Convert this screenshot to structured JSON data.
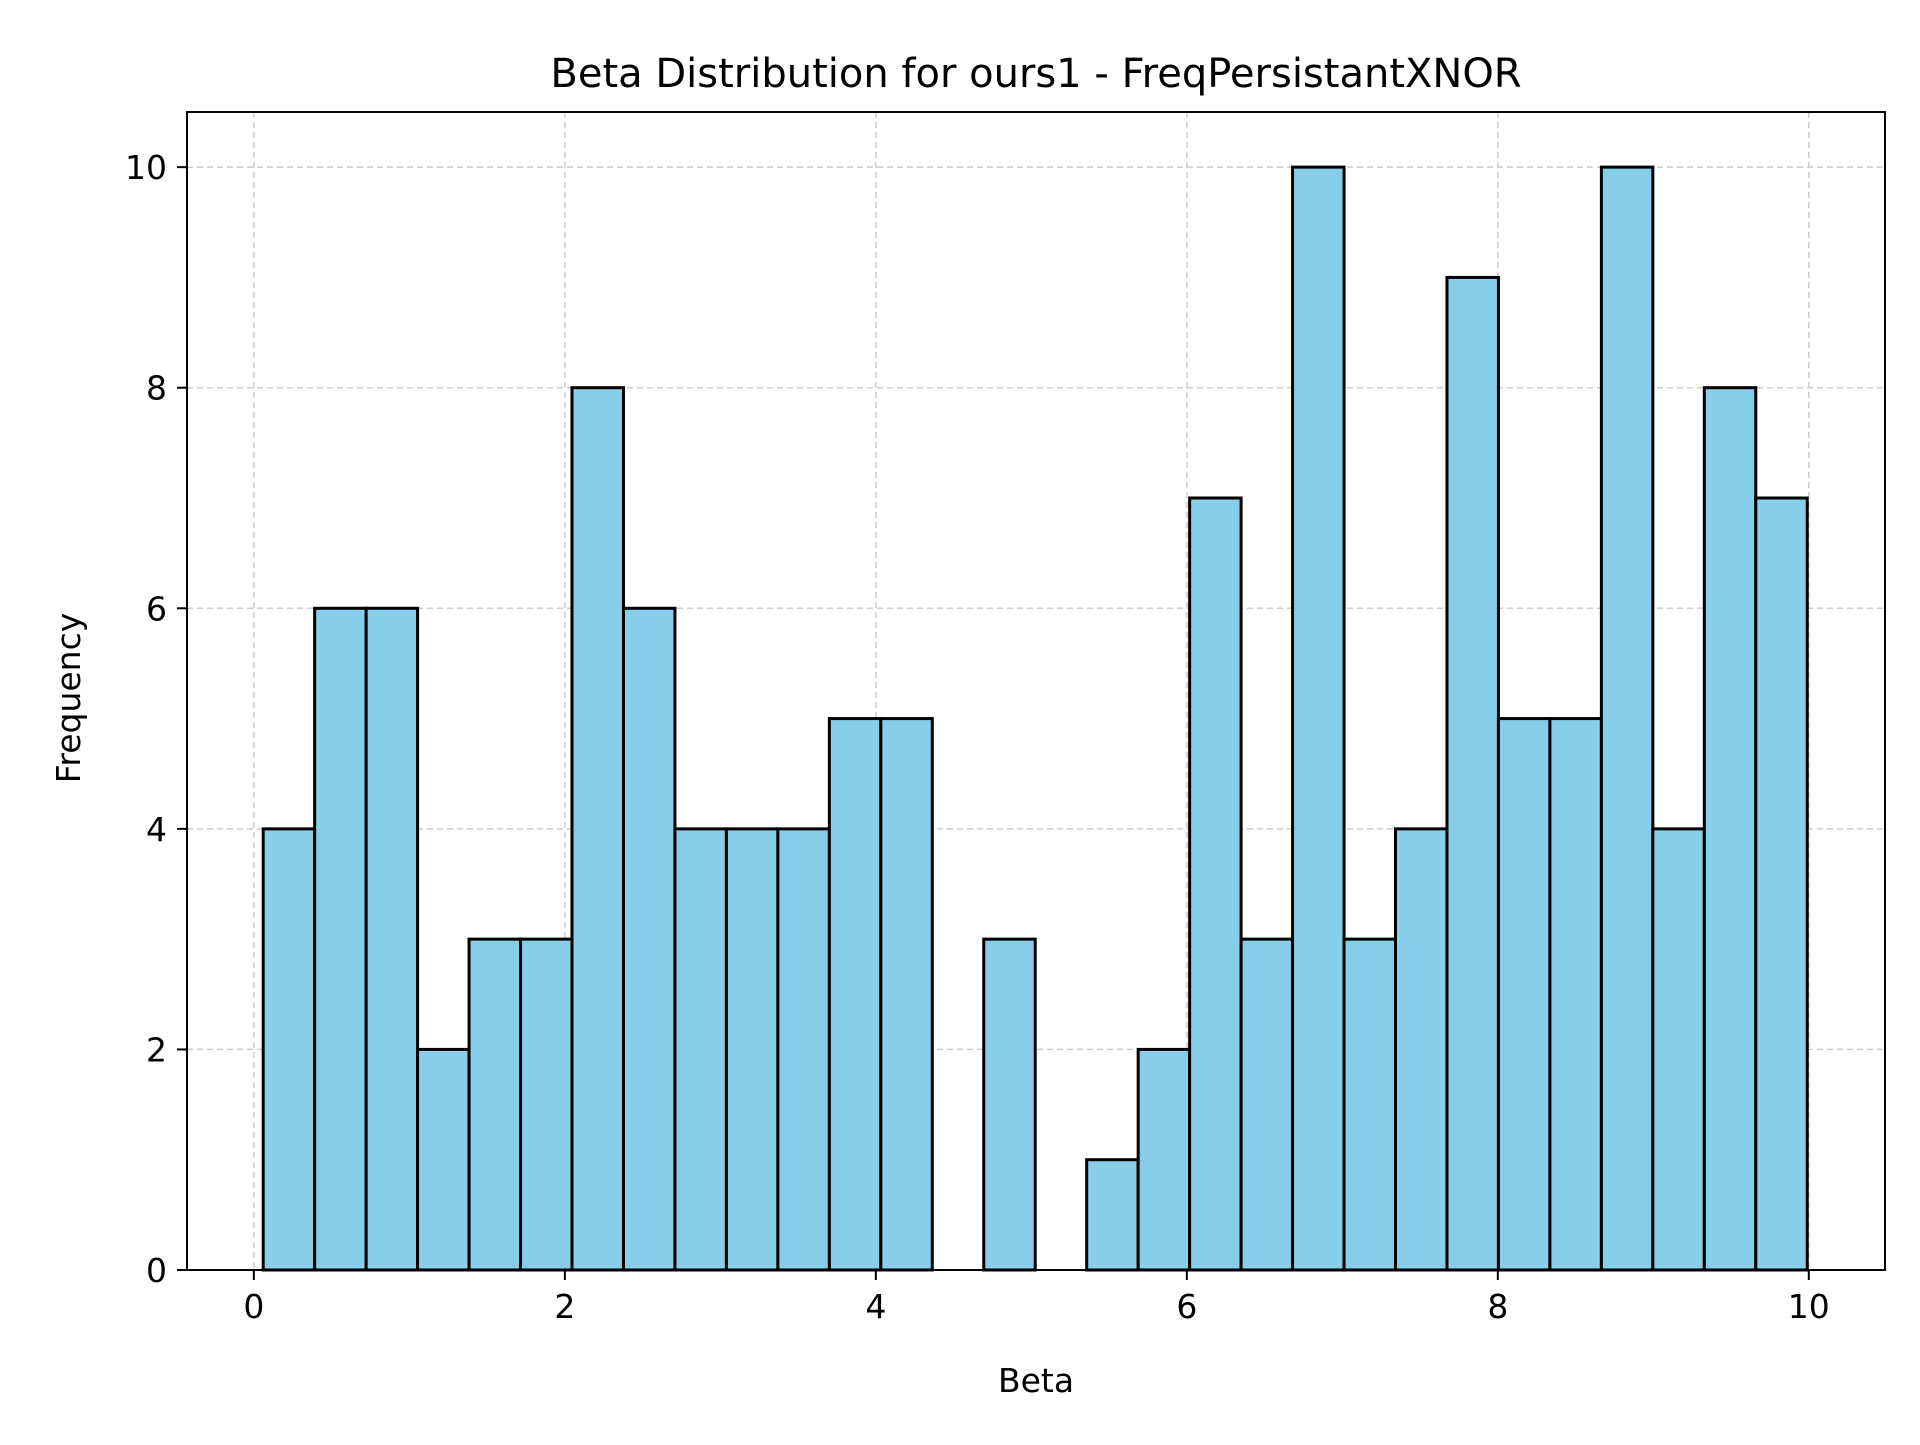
{
  "chart_data": {
    "type": "bar",
    "title": "Beta Distribution for ours1 - FreqPersistantXNOR",
    "xlabel": "Beta",
    "ylabel": "Frequency",
    "xlim": [
      -0.43,
      10.49
    ],
    "ylim": [
      0,
      10.5
    ],
    "xticks": [
      0,
      2,
      4,
      6,
      8,
      10
    ],
    "yticks": [
      0,
      2,
      4,
      6,
      8,
      10
    ],
    "grid": true,
    "bin_start": 0.06,
    "bin_width": 0.331,
    "values": [
      4,
      6,
      6,
      2,
      3,
      3,
      8,
      6,
      4,
      4,
      4,
      5,
      5,
      0,
      3,
      0,
      1,
      2,
      7,
      3,
      10,
      3,
      4,
      9,
      5,
      5,
      10,
      4,
      8,
      7
    ],
    "colors": {
      "bar_fill": "#87CEEB",
      "bar_edge": "#000000",
      "grid": "#cccccc"
    }
  }
}
